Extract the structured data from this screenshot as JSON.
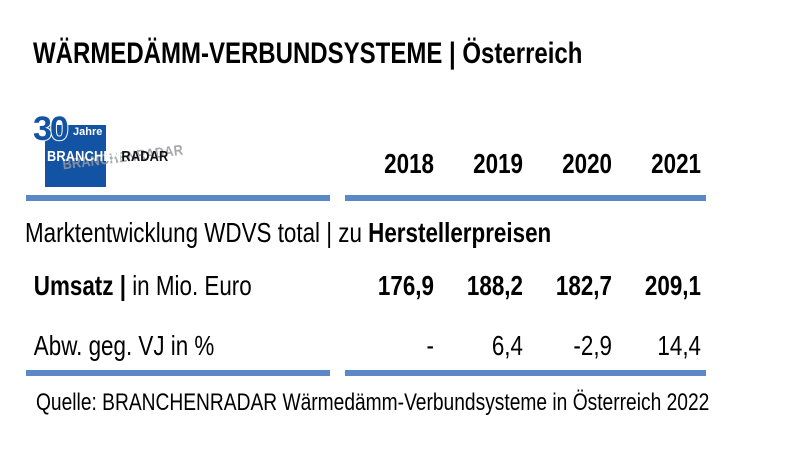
{
  "title": "WÄRMEDÄMM-VERBUNDSYSTEME | Österreich",
  "logo": {
    "number": "30",
    "number_suffix": "Jahre",
    "brand_part1": "BRANCHEN",
    "brand_part2": "RADAR",
    "ghost_text": "BRANCHENRADAR"
  },
  "colors": {
    "accent_bar": "#5b89c8",
    "logo_blue": "#1353a3",
    "text": "#000000"
  },
  "table": {
    "years": [
      "2018",
      "2019",
      "2020",
      "2021"
    ],
    "section_label_regular": "Marktentwicklung WDVS total | zu ",
    "section_label_bold": "Herstellerpreisen",
    "rows": [
      {
        "label_bold": "Umsatz | ",
        "label_regular": "in Mio. Euro",
        "values": [
          "176,9",
          "188,2",
          "182,7",
          "209,1"
        ]
      },
      {
        "label_bold": "",
        "label_regular": "Abw. geg. VJ in %",
        "values": [
          "-",
          "6,4",
          "-2,9",
          "14,4"
        ]
      }
    ]
  },
  "source": "Quelle: BRANCHENRADAR Wärmedämm-Verbundsysteme in Österreich 2022",
  "chart_data": {
    "type": "table",
    "title": "Marktentwicklung WDVS total | zu Herstellerpreisen",
    "categories": [
      "2018",
      "2019",
      "2020",
      "2021"
    ],
    "series": [
      {
        "name": "Umsatz | in Mio. Euro",
        "values": [
          176.9,
          188.2,
          182.7,
          209.1
        ]
      },
      {
        "name": "Abw. geg. VJ in %",
        "values": [
          null,
          6.4,
          -2.9,
          14.4
        ]
      }
    ]
  }
}
